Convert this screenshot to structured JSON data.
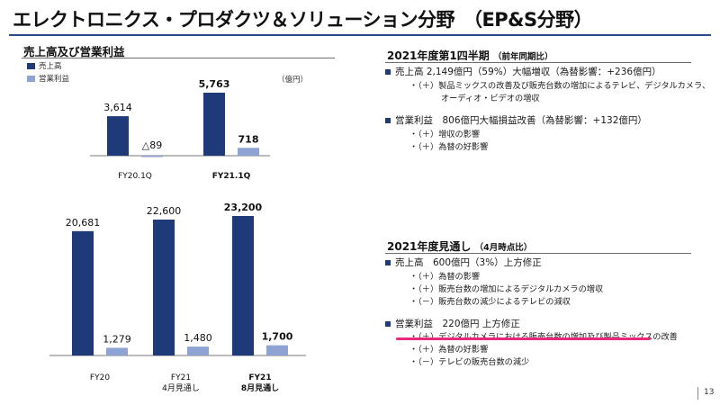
{
  "header": {
    "title": "エレクトロニクス・プロダクツ＆ソリューション分野　（EP&S分野）"
  },
  "left": {
    "subtitle": "売上高及び営業利益",
    "legend": {
      "sales": "売上高",
      "op": "営業利益"
    },
    "unit": "（億円）"
  },
  "chart_data": [
    {
      "type": "bar",
      "title": "売上高及び営業利益",
      "unit": "億円",
      "categories": [
        "FY20.1Q",
        "FY21.1Q"
      ],
      "series": [
        {
          "name": "売上高",
          "values": [
            3614,
            5763
          ],
          "labels": [
            "3,614",
            "5,763"
          ]
        },
        {
          "name": "営業利益",
          "values": [
            -89,
            718
          ],
          "labels": [
            "△89",
            "718"
          ]
        }
      ],
      "bold_categories": [
        false,
        true
      ]
    },
    {
      "type": "bar",
      "categories": [
        "FY20",
        "FY21\n4月見通し",
        "FY21\n8月見通し"
      ],
      "category_lines": [
        [
          "FY20"
        ],
        [
          "FY21",
          "4月見通し"
        ],
        [
          "FY21",
          "8月見通し"
        ]
      ],
      "series": [
        {
          "name": "売上高",
          "values": [
            20681,
            22600,
            23200
          ],
          "labels": [
            "20,681",
            "22,600",
            "23,200"
          ]
        },
        {
          "name": "営業利益",
          "values": [
            1279,
            1480,
            1700
          ],
          "labels": [
            "1,279",
            "1,480",
            "1,700"
          ]
        }
      ],
      "bold_categories": [
        false,
        false,
        true
      ]
    }
  ],
  "right": {
    "q1": {
      "title": "2021年度第1四半期",
      "note": "（前年同期比）",
      "b1": "売上高 2,149億円（59%）大幅増収（為替影響：+236億円）",
      "b1_s1": "・（＋）製品ミックスの改善及び販売台数の増加によるテレビ、デジタルカメラ、",
      "b1_s2": "オーディオ・ビデオの増収",
      "b2": "営業利益　806億円大幅損益改善（為替影響：+132億円）",
      "b2_s1": "・（＋）増収の影響",
      "b2_s2": "・（＋）為替の好影響"
    },
    "fy": {
      "title": "2021年度見通し",
      "note": "（4月時点比）",
      "b1": "売上高　600億円（3%）上方修正",
      "b1_s1": "・（＋）為替の影響",
      "b1_s2": "・（＋）販売台数の増加によるデジタルカメラの増収",
      "b1_s3": "・（－）販売台数の減少によるテレビの減収",
      "b2": "営業利益　220億円 上方修正",
      "b2_s1": "・（＋）デジタルカメラにおける販売台数の増加及び製品ミックスの改善",
      "b2_s2": "・（＋）為替の好影響",
      "b2_s3": "・（－）テレビの販売台数の減少"
    }
  },
  "colors": {
    "sales": "#1f3a78",
    "op": "#8ea3d3",
    "accent": "#e6297a"
  },
  "footer": {
    "page": "13"
  }
}
